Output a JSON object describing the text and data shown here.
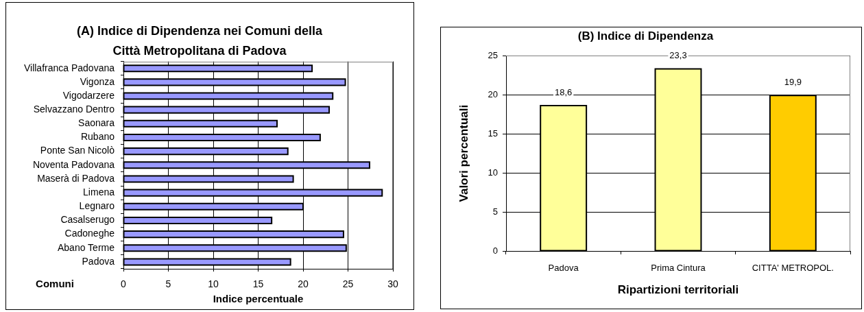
{
  "chart_data": [
    {
      "type": "bar",
      "orientation": "horizontal",
      "title": "(A) Indice di Dipendenza nei Comuni della Città Metropolitana di Padova",
      "xlabel": "Indice percentuale",
      "ylabel": "Comuni",
      "categories": [
        "Villafranca Padovana",
        "Vigonza",
        "Vigodarzere",
        "Selvazzano Dentro",
        "Saonara",
        "Rubano",
        "Ponte San Nicolò",
        "Noventa Padovana",
        "Maserà di Padova",
        "Limena",
        "Legnaro",
        "Casalserugo",
        "Cadoneghe",
        "Abano Terme",
        "Padova"
      ],
      "values": [
        21.0,
        24.7,
        23.3,
        22.9,
        17.1,
        21.9,
        18.3,
        27.4,
        18.9,
        28.8,
        20.0,
        16.5,
        24.5,
        24.8,
        18.6
      ],
      "color": "#9999ff",
      "xlim": [
        0,
        30
      ],
      "xticks": [
        0,
        5,
        10,
        15,
        20,
        25,
        30
      ],
      "grid": "x"
    },
    {
      "type": "bar",
      "title": "(B) Indice di Dipendenza",
      "xlabel": "Ripartizioni territoriali",
      "ylabel": "Valori percentuali",
      "categories": [
        "Padova",
        "Prima Cintura",
        "CITTA' METROPOL."
      ],
      "values": [
        18.6,
        23.3,
        19.9
      ],
      "colors": [
        "#ffff99",
        "#ffff99",
        "#ffcc00"
      ],
      "value_labels": [
        "18,6",
        "23,3",
        "19,9"
      ],
      "ylim": [
        0,
        25
      ],
      "yticks": [
        0,
        5,
        10,
        15,
        20,
        25
      ],
      "grid": "y"
    }
  ]
}
